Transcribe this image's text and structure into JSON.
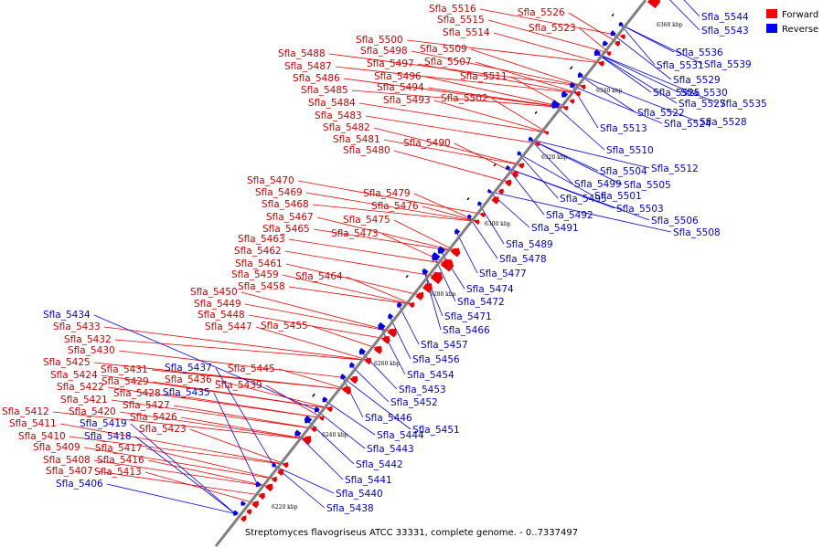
{
  "caption": "Streptomyces flavogriseus ATCC 33331, complete genome. - 0..7337497",
  "legend": {
    "forward": {
      "label": "Forward",
      "color": "#ff0000"
    },
    "reverse": {
      "label": "Reverse",
      "color": "#0000ff"
    }
  },
  "colors": {
    "forward_fill": "#ee0000",
    "forward_text": "#cc0000",
    "reverse_fill": "#0000ee",
    "reverse_text": "#0000cc",
    "backbone": "#808080"
  },
  "ticks": [
    "6220 kbp",
    "6240 kbp",
    "6260 kbp",
    "6280 kbp",
    "6300 kbp",
    "6320 kbp",
    "6340 kbp",
    "6360 kbp"
  ],
  "forward_genes": [
    "Sfla_5516",
    "Sfla_5526",
    "Sfla_5515",
    "Sfla_5523",
    "Sfla_5514",
    "Sfla_5500",
    "Sfla_5498",
    "Sfla_5509",
    "Sfla_5507",
    "Sfla_5497",
    "Sfla_5496",
    "Sfla_5511",
    "Sfla_5494",
    "Sfla_5493",
    "Sfla_5502",
    "Sfla_5488",
    "Sfla_5487",
    "Sfla_5486",
    "Sfla_5485",
    "Sfla_5484",
    "Sfla_5483",
    "Sfla_5482",
    "Sfla_5481",
    "Sfla_5480",
    "Sfla_5490",
    "Sfla_5470",
    "Sfla_5469",
    "Sfla_5479",
    "Sfla_5468",
    "Sfla_5476",
    "Sfla_5467",
    "Sfla_5475",
    "Sfla_5465",
    "Sfla_5473",
    "Sfla_5463",
    "Sfla_5462",
    "Sfla_5461",
    "Sfla_5459",
    "Sfla_5464",
    "Sfla_5458",
    "Sfla_5450",
    "Sfla_5449",
    "Sfla_5448",
    "Sfla_5447",
    "Sfla_5455",
    "Sfla_5433",
    "Sfla_5432",
    "Sfla_5430",
    "Sfla_5425",
    "Sfla_5431",
    "Sfla_5445",
    "Sfla_5424",
    "Sfla_5429",
    "Sfla_5436",
    "Sfla_5422",
    "Sfla_5428",
    "Sfla_5439",
    "Sfla_5421",
    "Sfla_5427",
    "Sfla_5420",
    "Sfla_5426",
    "Sfla_5412",
    "Sfla_5411",
    "Sfla_5423",
    "Sfla_5410",
    "Sfla_5409",
    "Sfla_5417",
    "Sfla_5408",
    "Sfla_5416",
    "Sfla_5407",
    "Sfla_5413"
  ],
  "reverse_genes": [
    "Sfla_5544",
    "Sfla_5543",
    "Sfla_5536",
    "Sfla_5531",
    "Sfla_5539",
    "Sfla_5529",
    "Sfla_5525",
    "Sfla_5530",
    "Sfla_5527",
    "Sfla_5535",
    "Sfla_5522",
    "Sfla_5524",
    "Sfla_5528",
    "Sfla_5513",
    "Sfla_5510",
    "Sfla_5504",
    "Sfla_5512",
    "Sfla_5499",
    "Sfla_5505",
    "Sfla_5495",
    "Sfla_5501",
    "Sfla_5503",
    "Sfla_5492",
    "Sfla_5506",
    "Sfla_5491",
    "Sfla_5508",
    "Sfla_5489",
    "Sfla_5478",
    "Sfla_5477",
    "Sfla_5474",
    "Sfla_5472",
    "Sfla_5471",
    "Sfla_5466",
    "Sfla_5457",
    "Sfla_5456",
    "Sfla_5454",
    "Sfla_5453",
    "Sfla_5452",
    "Sfla_5446",
    "Sfla_5451",
    "Sfla_5444",
    "Sfla_5443",
    "Sfla_5442",
    "Sfla_5441",
    "Sfla_5440",
    "Sfla_5438",
    "Sfla_5434",
    "Sfla_5437",
    "Sfla_5435",
    "Sfla_5419",
    "Sfla_5418",
    "Sfla_5406"
  ]
}
